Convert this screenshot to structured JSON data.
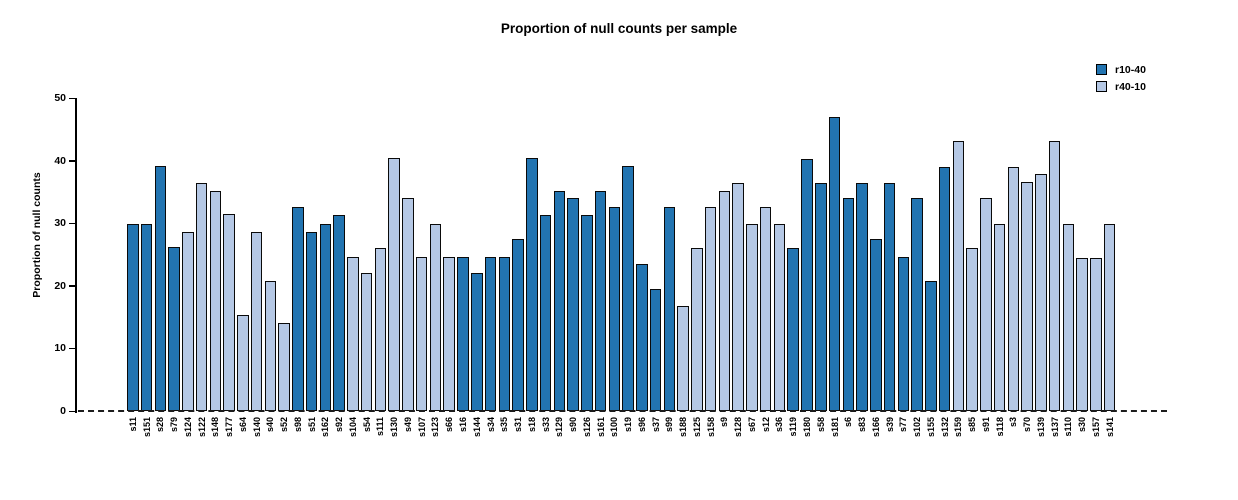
{
  "chart_data": {
    "type": "bar",
    "title": "Proportion of null counts per sample",
    "ylabel": "Proportion of null counts",
    "xlabel": "",
    "ylim": [
      0,
      50
    ],
    "yticks": [
      0,
      10,
      20,
      30,
      40,
      50
    ],
    "grid": false,
    "legend_position": "top-right",
    "zero_baseline": "dashed",
    "colors": {
      "r10-40": "#2274b1",
      "r40-10": "#b5c8e5"
    },
    "legend": [
      {
        "label": "r10-40",
        "color": "#2274b1"
      },
      {
        "label": "r40-10",
        "color": "#b5c8e5"
      }
    ],
    "samples": [
      {
        "name": "s11",
        "group": "r10-40",
        "value": 29.9
      },
      {
        "name": "s151",
        "group": "r10-40",
        "value": 29.9
      },
      {
        "name": "s28",
        "group": "r10-40",
        "value": 39.2
      },
      {
        "name": "s79",
        "group": "r10-40",
        "value": 26.2
      },
      {
        "name": "s124",
        "group": "r40-10",
        "value": 28.6
      },
      {
        "name": "s122",
        "group": "r40-10",
        "value": 36.4
      },
      {
        "name": "s148",
        "group": "r40-10",
        "value": 35.2
      },
      {
        "name": "s177",
        "group": "r40-10",
        "value": 31.5
      },
      {
        "name": "s64",
        "group": "r40-10",
        "value": 15.4
      },
      {
        "name": "s140",
        "group": "r40-10",
        "value": 28.6
      },
      {
        "name": "s40",
        "group": "r40-10",
        "value": 20.8
      },
      {
        "name": "s52",
        "group": "r40-10",
        "value": 14.1
      },
      {
        "name": "s98",
        "group": "r10-40",
        "value": 32.6
      },
      {
        "name": "s51",
        "group": "r10-40",
        "value": 28.6
      },
      {
        "name": "s162",
        "group": "r10-40",
        "value": 29.9
      },
      {
        "name": "s92",
        "group": "r10-40",
        "value": 31.3
      },
      {
        "name": "s104",
        "group": "r40-10",
        "value": 24.6
      },
      {
        "name": "s54",
        "group": "r40-10",
        "value": 22.1
      },
      {
        "name": "s111",
        "group": "r40-10",
        "value": 26.1
      },
      {
        "name": "s130",
        "group": "r40-10",
        "value": 40.4
      },
      {
        "name": "s49",
        "group": "r40-10",
        "value": 34.0
      },
      {
        "name": "s107",
        "group": "r40-10",
        "value": 24.6
      },
      {
        "name": "s123",
        "group": "r40-10",
        "value": 29.9
      },
      {
        "name": "s66",
        "group": "r40-10",
        "value": 24.6
      },
      {
        "name": "s16",
        "group": "r10-40",
        "value": 24.6
      },
      {
        "name": "s144",
        "group": "r10-40",
        "value": 22.1
      },
      {
        "name": "s34",
        "group": "r10-40",
        "value": 24.6
      },
      {
        "name": "s35",
        "group": "r10-40",
        "value": 24.6
      },
      {
        "name": "s31",
        "group": "r10-40",
        "value": 27.4
      },
      {
        "name": "s18",
        "group": "r10-40",
        "value": 40.4
      },
      {
        "name": "s33",
        "group": "r10-40",
        "value": 31.3
      },
      {
        "name": "s129",
        "group": "r10-40",
        "value": 35.2
      },
      {
        "name": "s90",
        "group": "r10-40",
        "value": 34.0
      },
      {
        "name": "s126",
        "group": "r10-40",
        "value": 31.3
      },
      {
        "name": "s161",
        "group": "r10-40",
        "value": 35.2
      },
      {
        "name": "s100",
        "group": "r10-40",
        "value": 32.6
      },
      {
        "name": "s19",
        "group": "r10-40",
        "value": 39.2
      },
      {
        "name": "s96",
        "group": "r10-40",
        "value": 23.5
      },
      {
        "name": "s37",
        "group": "r10-40",
        "value": 19.5
      },
      {
        "name": "s99",
        "group": "r10-40",
        "value": 32.6
      },
      {
        "name": "s188",
        "group": "r40-10",
        "value": 16.8
      },
      {
        "name": "s125",
        "group": "r40-10",
        "value": 26.1
      },
      {
        "name": "s158",
        "group": "r40-10",
        "value": 32.6
      },
      {
        "name": "s9",
        "group": "r40-10",
        "value": 35.2
      },
      {
        "name": "s128",
        "group": "r40-10",
        "value": 36.4
      },
      {
        "name": "s67",
        "group": "r40-10",
        "value": 29.9
      },
      {
        "name": "s12",
        "group": "r40-10",
        "value": 32.6
      },
      {
        "name": "s36",
        "group": "r40-10",
        "value": 29.9
      },
      {
        "name": "s119",
        "group": "r10-40",
        "value": 26.1
      },
      {
        "name": "s180",
        "group": "r10-40",
        "value": 40.3
      },
      {
        "name": "s58",
        "group": "r10-40",
        "value": 36.4
      },
      {
        "name": "s181",
        "group": "r10-40",
        "value": 47.0
      },
      {
        "name": "s6",
        "group": "r10-40",
        "value": 34.0
      },
      {
        "name": "s83",
        "group": "r10-40",
        "value": 36.4
      },
      {
        "name": "s166",
        "group": "r10-40",
        "value": 27.4
      },
      {
        "name": "s39",
        "group": "r10-40",
        "value": 36.4
      },
      {
        "name": "s77",
        "group": "r10-40",
        "value": 24.6
      },
      {
        "name": "s102",
        "group": "r10-40",
        "value": 34.0
      },
      {
        "name": "s155",
        "group": "r10-40",
        "value": 20.8
      },
      {
        "name": "s132",
        "group": "r10-40",
        "value": 39.0
      },
      {
        "name": "s159",
        "group": "r40-10",
        "value": 43.1
      },
      {
        "name": "s85",
        "group": "r40-10",
        "value": 26.1
      },
      {
        "name": "s91",
        "group": "r40-10",
        "value": 34.0
      },
      {
        "name": "s118",
        "group": "r40-10",
        "value": 29.9
      },
      {
        "name": "s3",
        "group": "r40-10",
        "value": 39.0
      },
      {
        "name": "s70",
        "group": "r40-10",
        "value": 36.6
      },
      {
        "name": "s139",
        "group": "r40-10",
        "value": 37.9
      },
      {
        "name": "s137",
        "group": "r40-10",
        "value": 43.1
      },
      {
        "name": "s110",
        "group": "r40-10",
        "value": 29.9
      },
      {
        "name": "s30",
        "group": "r40-10",
        "value": 24.5
      },
      {
        "name": "s157",
        "group": "r40-10",
        "value": 24.5
      },
      {
        "name": "s141",
        "group": "r40-10",
        "value": 29.9
      }
    ]
  }
}
